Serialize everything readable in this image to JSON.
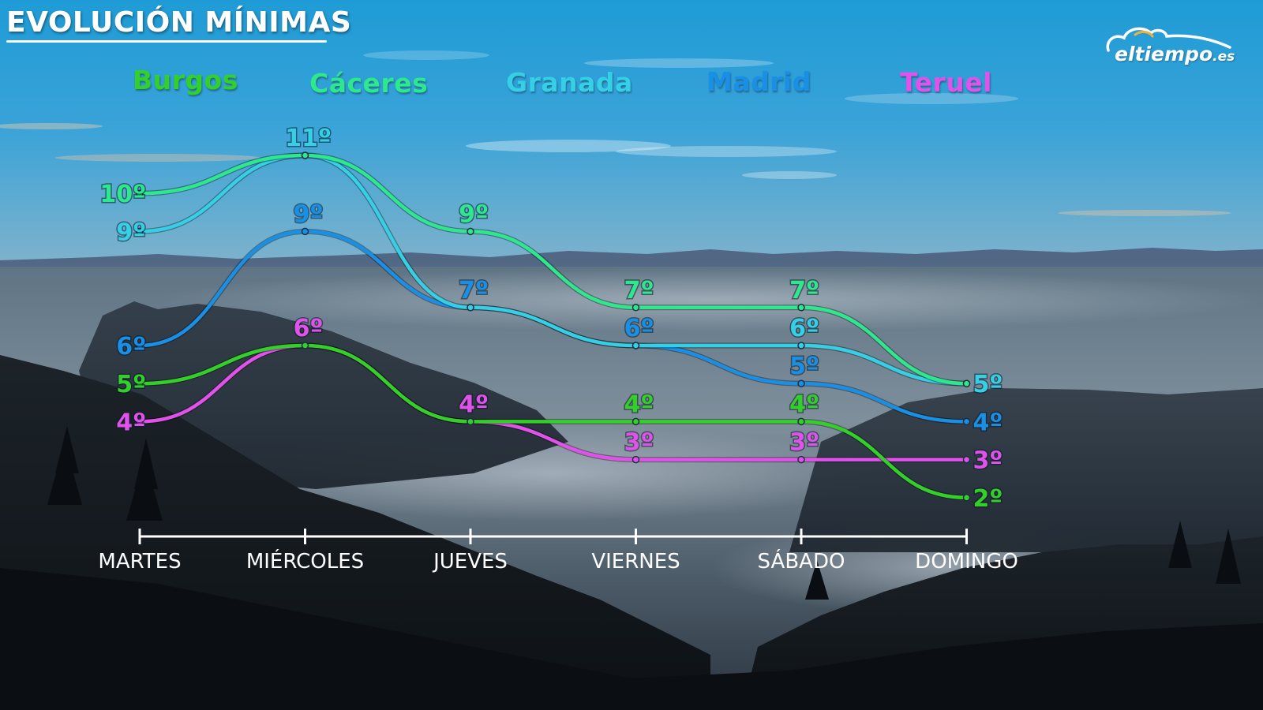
{
  "header": {
    "title": "EVOLUCIÓN MÍNIMAS",
    "logo_text": "eltiempo",
    "logo_suffix": ".es"
  },
  "colors": {
    "Burgos": "#34d02a",
    "Cáceres": "#2ee88e",
    "Granada": "#35d0e6",
    "Madrid": "#1a8fe6",
    "Teruel": "#e052ea"
  },
  "legend": [
    "Burgos",
    "Cáceres",
    "Granada",
    "Madrid",
    "Teruel"
  ],
  "chart_data": {
    "type": "line",
    "title": "EVOLUCIÓN MÍNIMAS",
    "categories": [
      "MARTES",
      "MIÉRCOLES",
      "JUEVES",
      "VIERNES",
      "SÁBADO",
      "DOMINGO"
    ],
    "unit": "º",
    "ylim": [
      2,
      11
    ],
    "series": [
      {
        "name": "Burgos",
        "values": [
          5,
          6,
          4,
          4,
          4,
          2
        ]
      },
      {
        "name": "Cáceres",
        "values": [
          10,
          11,
          9,
          7,
          7,
          5
        ]
      },
      {
        "name": "Granada",
        "values": [
          9,
          11,
          7,
          6,
          6,
          5
        ]
      },
      {
        "name": "Madrid",
        "values": [
          6,
          9,
          7,
          6,
          5,
          4
        ]
      },
      {
        "name": "Teruel",
        "values": [
          4,
          6,
          4,
          3,
          3,
          3
        ]
      }
    ],
    "data_labels": [
      {
        "series": "Cáceres",
        "x": "MARTES",
        "text": "10º"
      },
      {
        "series": "Granada",
        "x": "MARTES",
        "text": "9º"
      },
      {
        "series": "Madrid",
        "x": "MARTES",
        "text": "6º"
      },
      {
        "series": "Burgos",
        "x": "MARTES",
        "text": "5º"
      },
      {
        "series": "Teruel",
        "x": "MARTES",
        "text": "4º"
      },
      {
        "series": "Granada",
        "x": "MIÉRCOLES",
        "text": "11º"
      },
      {
        "series": "Madrid",
        "x": "MIÉRCOLES",
        "text": "9º"
      },
      {
        "series": "Teruel",
        "x": "MIÉRCOLES",
        "text": "6º"
      },
      {
        "series": "Cáceres",
        "x": "JUEVES",
        "text": "9º"
      },
      {
        "series": "Madrid",
        "x": "JUEVES",
        "text": "7º"
      },
      {
        "series": "Teruel",
        "x": "JUEVES",
        "text": "4º"
      },
      {
        "series": "Cáceres",
        "x": "VIERNES",
        "text": "7º"
      },
      {
        "series": "Madrid",
        "x": "VIERNES",
        "text": "6º"
      },
      {
        "series": "Burgos",
        "x": "VIERNES",
        "text": "4º"
      },
      {
        "series": "Teruel",
        "x": "VIERNES",
        "text": "3º"
      },
      {
        "series": "Cáceres",
        "x": "SÁBADO",
        "text": "7º"
      },
      {
        "series": "Granada",
        "x": "SÁBADO",
        "text": "6º"
      },
      {
        "series": "Madrid",
        "x": "SÁBADO",
        "text": "5º"
      },
      {
        "series": "Burgos",
        "x": "SÁBADO",
        "text": "4º"
      },
      {
        "series": "Teruel",
        "x": "SÁBADO",
        "text": "3º"
      },
      {
        "series": "Granada",
        "x": "DOMINGO",
        "text": "5º"
      },
      {
        "series": "Madrid",
        "x": "DOMINGO",
        "text": "4º"
      },
      {
        "series": "Teruel",
        "x": "DOMINGO",
        "text": "3º"
      },
      {
        "series": "Burgos",
        "x": "DOMINGO",
        "text": "2º"
      }
    ]
  }
}
